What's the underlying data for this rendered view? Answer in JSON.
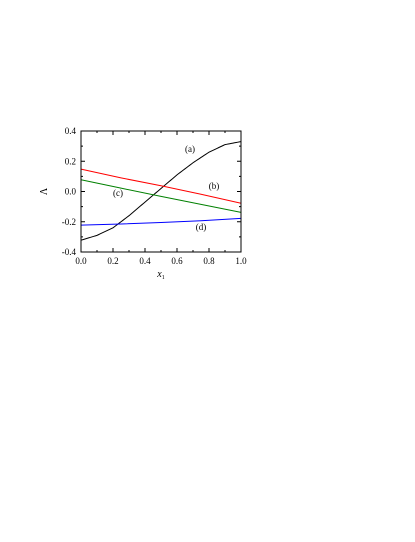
{
  "chart_data": {
    "type": "line",
    "xlabel": "x",
    "xlabel_subscript": "1",
    "ylabel": "Λ",
    "xlim": [
      0.0,
      1.0
    ],
    "ylim": [
      -0.4,
      0.4
    ],
    "x_ticks": [
      "0.0",
      "0.2",
      "0.4",
      "0.6",
      "0.8",
      "1.0"
    ],
    "y_ticks": [
      "-0.4",
      "-0.2",
      "0.0",
      "0.2",
      "0.4"
    ],
    "grid": false,
    "series": [
      {
        "name": "(a)",
        "color": "#000000",
        "x": [
          0.0,
          0.1,
          0.2,
          0.3,
          0.4,
          0.5,
          0.6,
          0.7,
          0.8,
          0.9,
          1.0
        ],
        "y": [
          -0.322,
          -0.29,
          -0.24,
          -0.16,
          -0.07,
          0.02,
          0.11,
          0.19,
          0.26,
          0.31,
          0.33
        ]
      },
      {
        "name": "(b)",
        "color": "#ff0000",
        "x": [
          0.0,
          0.25,
          0.5,
          0.75,
          1.0
        ],
        "y": [
          0.148,
          0.09,
          0.038,
          -0.018,
          -0.078
        ]
      },
      {
        "name": "(c)",
        "color": "#008000",
        "x": [
          0.0,
          0.25,
          0.5,
          0.75,
          1.0
        ],
        "y": [
          0.078,
          0.022,
          -0.032,
          -0.085,
          -0.138
        ]
      },
      {
        "name": "(d)",
        "color": "#0000ff",
        "x": [
          0.0,
          0.25,
          0.5,
          0.75,
          1.0
        ],
        "y": [
          -0.222,
          -0.215,
          -0.205,
          -0.193,
          -0.178
        ]
      }
    ]
  }
}
